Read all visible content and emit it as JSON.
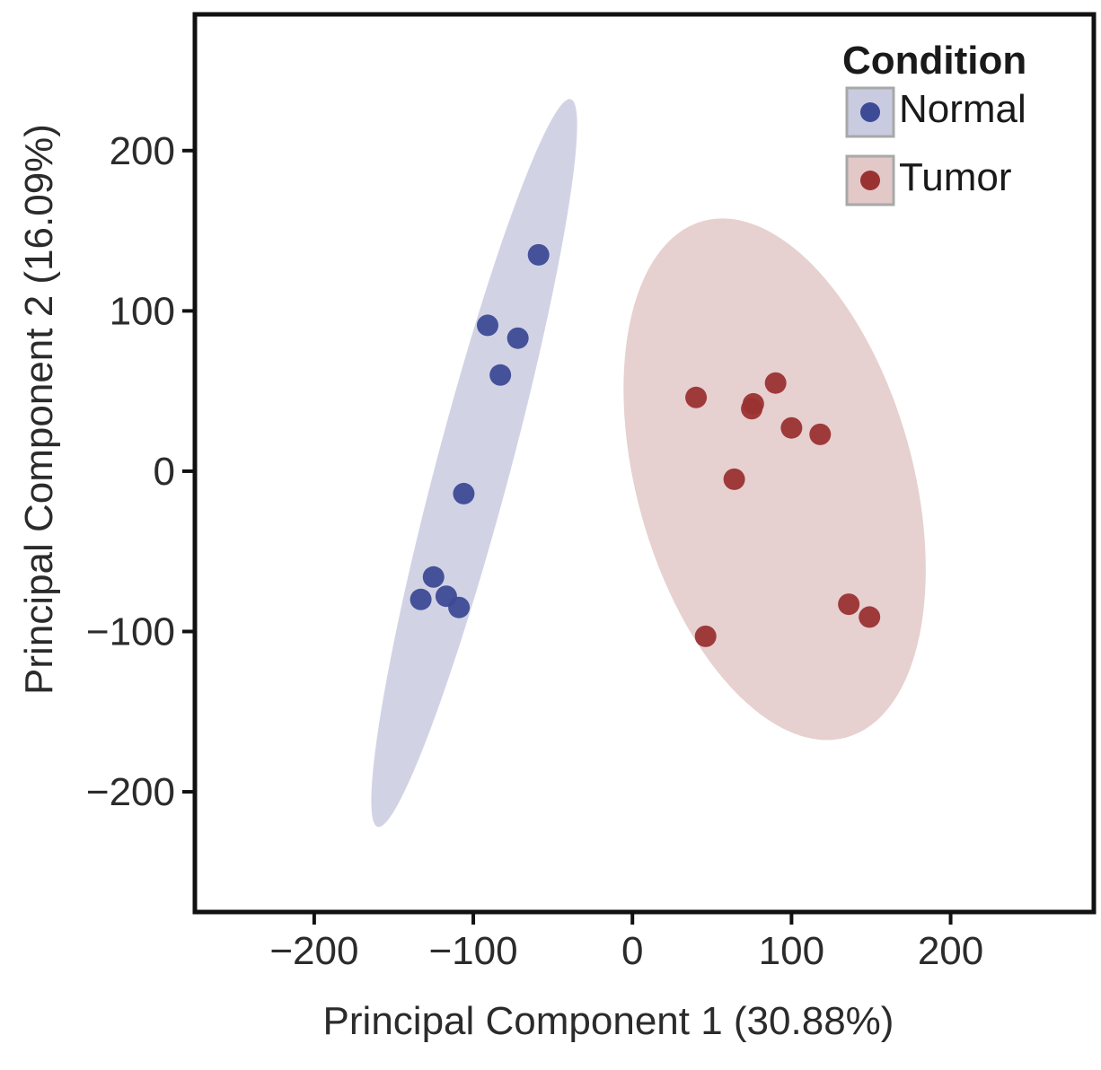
{
  "chart_data": {
    "type": "scatter",
    "title": "",
    "xlabel": "Principal Component 1 (30.88%)",
    "ylabel": "Principal Component  2 (16.09%)",
    "xlim": [
      -275,
      290
    ],
    "ylim": [
      -275,
      285
    ],
    "xticks": [
      -200,
      -100,
      0,
      100,
      200
    ],
    "yticks": [
      -200,
      -100,
      0,
      100,
      200
    ],
    "xtick_labels": [
      "−200",
      "−100",
      "0",
      "100",
      "200"
    ],
    "ytick_labels": [
      "−200",
      "−100",
      "0",
      "100",
      "200"
    ],
    "grid": false,
    "legend": {
      "title": "Condition",
      "placement": "top-right"
    },
    "series": [
      {
        "name": "Normal",
        "color": "#3d4a95",
        "ellipse_color": "#c9cbe0",
        "points": [
          {
            "x": -59,
            "y": 135
          },
          {
            "x": -91,
            "y": 91
          },
          {
            "x": -72,
            "y": 83
          },
          {
            "x": -83,
            "y": 60
          },
          {
            "x": -106,
            "y": -14
          },
          {
            "x": -125,
            "y": -66
          },
          {
            "x": -133,
            "y": -80
          },
          {
            "x": -117,
            "y": -78
          },
          {
            "x": -109,
            "y": -85
          }
        ]
      },
      {
        "name": "Tumor",
        "color": "#9b3232",
        "ellipse_color": "#e3c8c8",
        "points": [
          {
            "x": 40,
            "y": 46
          },
          {
            "x": 76,
            "y": 42
          },
          {
            "x": 75,
            "y": 39
          },
          {
            "x": 90,
            "y": 55
          },
          {
            "x": 100,
            "y": 27
          },
          {
            "x": 118,
            "y": 23
          },
          {
            "x": 64,
            "y": -5
          },
          {
            "x": 136,
            "y": -83
          },
          {
            "x": 149,
            "y": -91
          },
          {
            "x": 46,
            "y": -103
          }
        ]
      }
    ]
  }
}
